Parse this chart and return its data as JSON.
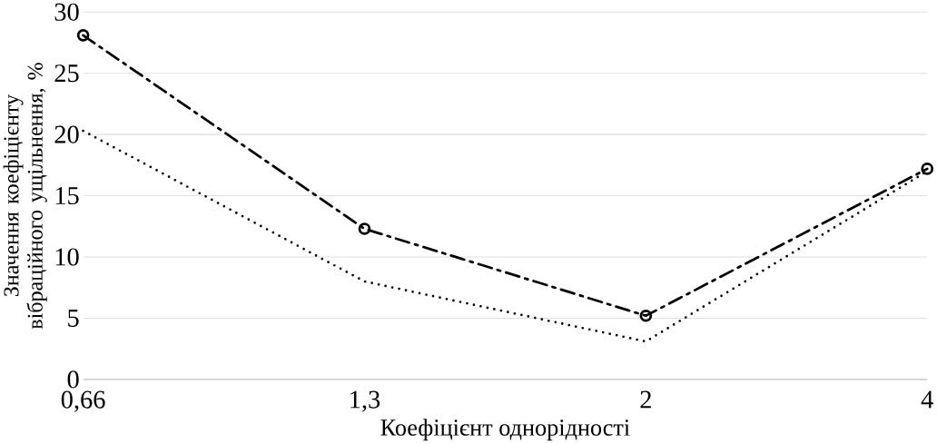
{
  "chart_data": {
    "type": "line",
    "xlabel": "Коефіцієнт однорідності",
    "ylabel": "Значення коефіцієнту вібраційного ущільнення, %",
    "categories": [
      "0,66",
      "1,3",
      "2",
      "4"
    ],
    "series": [
      {
        "color": "#000000",
        "values": [
          28.1,
          12.3,
          5.2,
          17.2
        ],
        "marker": "circle",
        "line_style": "dashdot"
      },
      {
        "color": "#000000",
        "values": [
          20.3,
          8.0,
          3.1,
          17.0
        ],
        "marker": "none",
        "line_style": "dotted"
      }
    ],
    "ylim": [
      0,
      30
    ],
    "yticks": [
      0,
      5,
      10,
      15,
      20,
      25,
      30
    ],
    "grid": "y"
  }
}
